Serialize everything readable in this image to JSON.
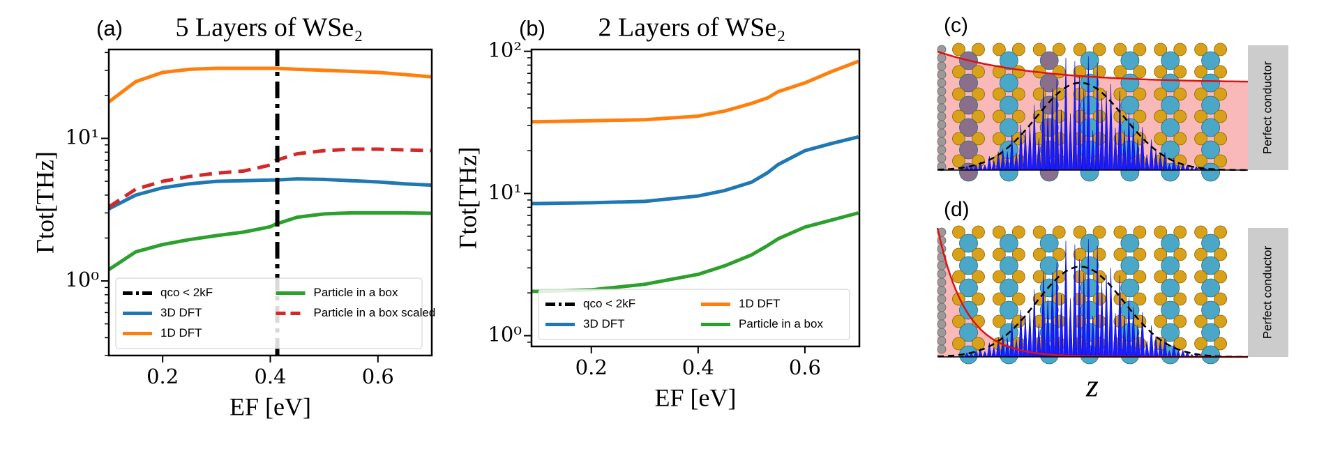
{
  "chart_data": [
    {
      "type": "line",
      "panel": "(a)",
      "title": "5 Layers of WSe₂",
      "xlabel": "EF [eV]",
      "ylabel": "Γtot[THz]",
      "yscale": "log",
      "xlim": [
        0.1,
        0.7
      ],
      "ylim": [
        0.3,
        42
      ],
      "xticks": [
        0.2,
        0.4,
        0.6
      ],
      "yticks": [
        {
          "value": 1,
          "label": "10⁰"
        },
        {
          "value": 10,
          "label": "10¹"
        }
      ],
      "legend": "lower center",
      "legend_columns": 2,
      "vline": {
        "name": "qco < 2kF",
        "x": 0.413,
        "color": "#000000"
      },
      "x": [
        0.1,
        0.15,
        0.2,
        0.25,
        0.3,
        0.35,
        0.4,
        0.41,
        0.45,
        0.5,
        0.55,
        0.6,
        0.65,
        0.7
      ],
      "series": [
        {
          "name": "3D DFT",
          "color": "#1f77b4",
          "values": [
            3.2,
            4.0,
            4.5,
            4.8,
            5.0,
            5.05,
            5.1,
            5.1,
            5.2,
            5.15,
            5.05,
            4.95,
            4.8,
            4.7
          ]
        },
        {
          "name": "1D DFT",
          "color": "#ff7f0e",
          "values": [
            18,
            25,
            29,
            30.5,
            31,
            31,
            31,
            31,
            30.5,
            30,
            29.5,
            29,
            28,
            27
          ]
        },
        {
          "name": "Particle in a box",
          "color": "#2ca02c",
          "values": [
            1.2,
            1.6,
            1.8,
            1.95,
            2.08,
            2.2,
            2.4,
            2.5,
            2.8,
            2.95,
            3.0,
            3.0,
            3.0,
            2.98
          ]
        },
        {
          "name": "Particle in a box scaled",
          "color": "#d62728",
          "dashed": true,
          "values": [
            3.3,
            4.4,
            5.0,
            5.4,
            5.7,
            5.9,
            6.5,
            7.0,
            7.8,
            8.2,
            8.4,
            8.4,
            8.3,
            8.2
          ]
        }
      ]
    },
    {
      "type": "line",
      "panel": "(b)",
      "title": "2 Layers of WSe₂",
      "xlabel": "EF [eV]",
      "ylabel": "Γtot[THz]",
      "yscale": "log",
      "xlim": [
        0.088,
        0.702
      ],
      "ylim": [
        0.84,
        103
      ],
      "xticks": [
        0.2,
        0.4,
        0.6
      ],
      "yticks": [
        {
          "value": 1,
          "label": "10⁰"
        },
        {
          "value": 10,
          "label": "10¹"
        },
        {
          "value": 100,
          "label": "10²"
        }
      ],
      "legend": "lower center",
      "legend_columns": 2,
      "vline": {
        "name": "qco < 2kF",
        "color": "#000000"
      },
      "x": [
        0.088,
        0.1,
        0.2,
        0.3,
        0.4,
        0.45,
        0.5,
        0.53,
        0.55,
        0.6,
        0.65,
        0.7
      ],
      "series": [
        {
          "name": "3D DFT",
          "color": "#1f77b4",
          "values": [
            8.5,
            8.5,
            8.6,
            8.8,
            9.6,
            10.5,
            12,
            14,
            16,
            20,
            22.5,
            25
          ]
        },
        {
          "name": "1D DFT",
          "color": "#ff7f0e",
          "values": [
            32,
            32,
            32.5,
            33,
            35,
            38,
            43,
            47,
            52,
            60,
            72,
            85
          ]
        },
        {
          "name": "Particle in a box",
          "color": "#2ca02c",
          "values": [
            2.05,
            2.05,
            2.1,
            2.3,
            2.7,
            3.1,
            3.7,
            4.3,
            4.8,
            5.8,
            6.5,
            7.3
          ]
        }
      ]
    }
  ],
  "illustrations": [
    {
      "label": "(c)",
      "side_label": "Perfect conductor"
    },
    {
      "label": "(d)",
      "side_label": "Perfect conductor"
    }
  ],
  "z_label": "z"
}
